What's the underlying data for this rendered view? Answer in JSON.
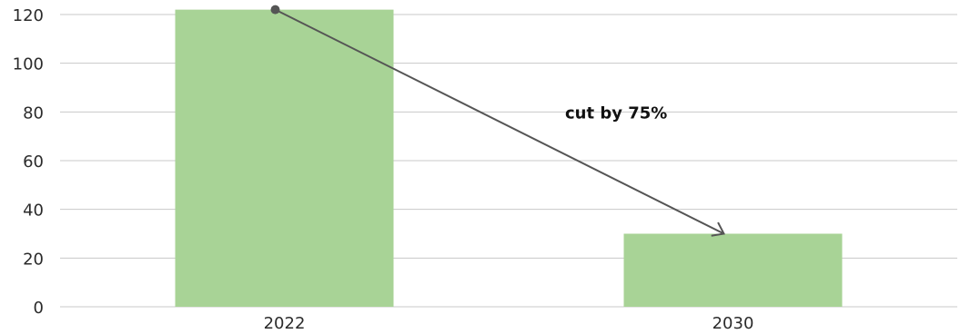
{
  "chart_data": {
    "type": "bar",
    "categories": [
      "2022",
      "2030"
    ],
    "values": [
      122,
      30
    ],
    "ylim": [
      0,
      120
    ],
    "yticks": [
      0,
      20,
      40,
      60,
      80,
      100,
      120
    ],
    "grid": true,
    "bar_color": "#a8d396",
    "grid_color": "#c8c8c8",
    "arrow_color": "#555555",
    "annotation": {
      "text": "cut by 75%",
      "from_category": "2022",
      "to_category": "2030"
    }
  }
}
